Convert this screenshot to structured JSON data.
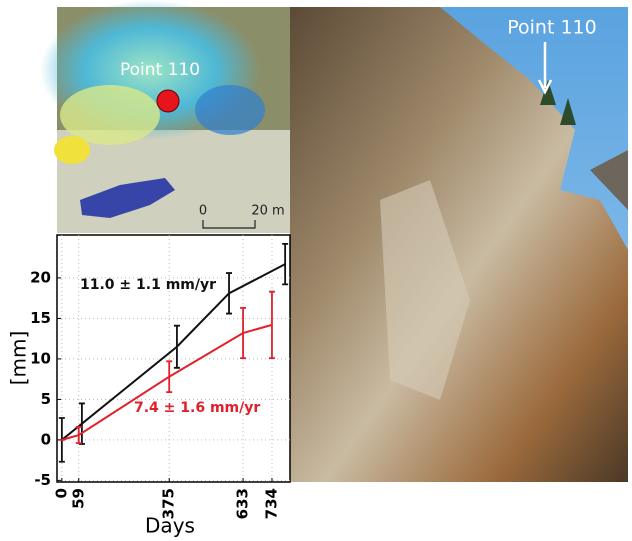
{
  "map": {
    "label": "Point 110",
    "scale_bar": {
      "start": "0",
      "end": "20 m"
    }
  },
  "photo": {
    "label": "Point 110"
  },
  "chart_data": {
    "type": "line",
    "xlabel": "Days",
    "ylabel": "[mm]",
    "xlim": [
      -17,
      797
    ],
    "ylim": [
      -5.2,
      25.3
    ],
    "xticks": [
      0,
      59,
      375,
      633,
      734
    ],
    "yticks": [
      -5,
      0,
      5,
      10,
      15,
      20
    ],
    "grid": true,
    "series": [
      {
        "color": "#111111",
        "x": [
          0,
          70,
          402,
          584,
          780
        ],
        "values": [
          0,
          2.0,
          11.5,
          18.1,
          21.7
        ],
        "errors": [
          2.7,
          2.5,
          2.6,
          2.5,
          2.5
        ]
      },
      {
        "color": "#e0202a",
        "x": [
          0,
          59,
          375,
          633,
          734
        ],
        "values": [
          0,
          0.6,
          7.8,
          13.2,
          14.2
        ],
        "errors": [
          0,
          1.0,
          1.9,
          3.1,
          4.1
        ]
      }
    ],
    "annotations": [
      {
        "text": "11.0 ± 1.1 mm/yr",
        "color": "#111111"
      },
      {
        "text": "7.4 ± 1.6 mm/yr",
        "color": "#e0202a"
      }
    ]
  }
}
